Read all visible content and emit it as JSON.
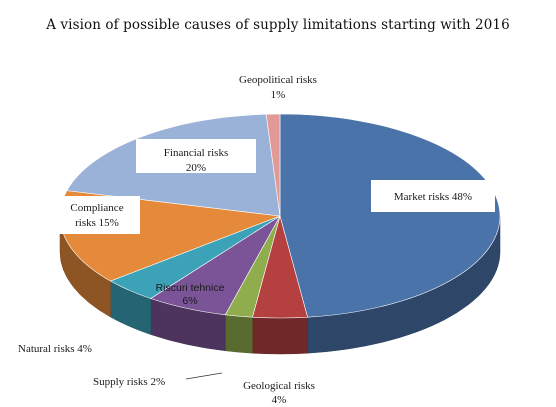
{
  "chart_data": {
    "type": "pie",
    "title": "A vision of possible causes of supply limitations starting with 2016",
    "slices": [
      {
        "label": "Market risks 48%",
        "value": 48,
        "color": "#4a73aa"
      },
      {
        "label": "Geological risks 4%",
        "value": 4,
        "color": "#b54040"
      },
      {
        "label": "Supply risks 2%",
        "value": 2,
        "color": "#8fad4c"
      },
      {
        "label": "Riscuri tehnice 6%",
        "value": 6,
        "color": "#7a5497"
      },
      {
        "label": "Natural risks 4%",
        "value": 4,
        "color": "#3ca2b8"
      },
      {
        "label": "Compliance risks 15%",
        "value": 15,
        "color": "#e5893a"
      },
      {
        "label": "Financial risks 20%",
        "value": 20,
        "color": "#9bb2d8"
      },
      {
        "label": "Geopolitical risks 1%",
        "value": 1,
        "color": "#e29a97"
      }
    ],
    "labels": {
      "market": "Market risks 48%",
      "geological_1": "Geological risks",
      "geological_2": "4%",
      "supply": "Supply risks 2%",
      "technical_1": "Riscuri tehnice",
      "technical_2": "6%",
      "natural": "Natural risks 4%",
      "compliance_1": "Compliance",
      "compliance_2": "risks 15%",
      "financial_1": "Financial risks",
      "financial_2": "20%",
      "geopolitical_1": "Geopolitical risks",
      "geopolitical_2": "1%"
    }
  }
}
